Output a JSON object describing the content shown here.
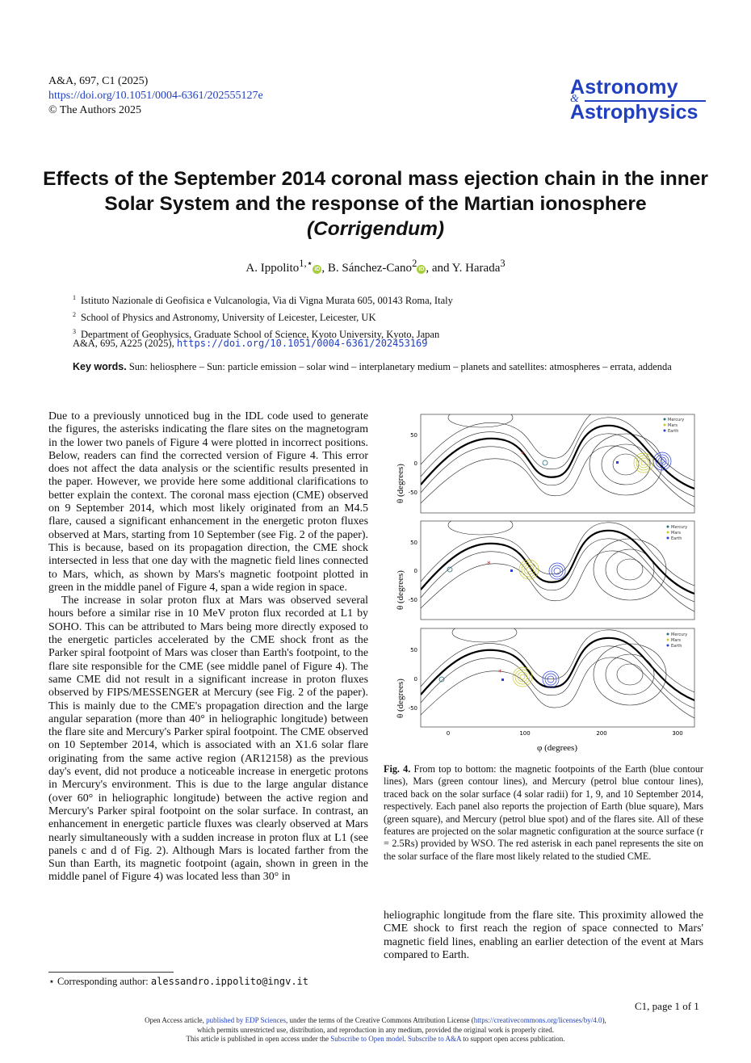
{
  "header": {
    "citation": "A&A, 697, C1  (2025)",
    "doi": "https://doi.org/10.1051/0004-6361/202555127e",
    "copyright": "© The Authors 2025"
  },
  "journal_logo": {
    "line1": "Astronomy",
    "amp": "&",
    "line2": "Astrophysics"
  },
  "title": {
    "main": "Effects of the September 2014 coronal mass ejection chain in the inner Solar System and the response of the Martian ionosphere",
    "sub": "(Corrigendum)"
  },
  "authors": [
    {
      "name": "A. Ippolito",
      "sup": "1,⋆"
    },
    {
      "name": "B. Sánchez-Cano",
      "sup": "2"
    },
    {
      "name": "Y. Harada",
      "sup": "3"
    }
  ],
  "authors_sep": ", ",
  "authors_and": ", and ",
  "affiliations": [
    {
      "num": "1",
      "text": "Istituto Nazionale di Geofisica e Vulcanologia, Via di Vigna Murata 605, 00143 Roma, Italy"
    },
    {
      "num": "2",
      "text": "School of Physics and Astronomy, University of Leicester, Leicester, UK"
    },
    {
      "num": "3",
      "text": "Department of Geophysics, Graduate School of Science, Kyoto University, Kyoto, Japan"
    }
  ],
  "original_ref": {
    "text": "A&A, 695, A225 (2025), ",
    "doi": "https://doi.org/10.1051/0004-6361/202453169"
  },
  "keywords": {
    "label": "Key words.",
    "text": "Sun: heliosphere – Sun: particle emission – solar wind – interplanetary medium – planets and satellites: atmospheres – errata, addenda"
  },
  "body_left": {
    "p1": "Due to a previously unnoticed bug in the IDL code used to generate the figures, the asterisks indicating the flare sites on the magnetogram in the lower two panels of Figure 4 were plotted in incorrect positions. Below, readers can find the corrected version of Figure 4. This error does not affect the data analysis or the scientific results presented in the paper. However, we provide here some additional clarifications to better explain the context. The coronal mass ejection (CME) observed on 9 September 2014, which most likely originated from an M4.5 flare, caused a significant enhancement in the energetic proton fluxes observed at Mars, starting from 10 September (see Fig. 2 of the paper). This is because, based on its propagation direction, the CME shock intersected in less that one day with the magnetic field lines connected to Mars, which, as shown by Mars's magnetic footpoint plotted in green in the middle panel of Figure 4, span a wide region in space.",
    "p2": "The increase in solar proton flux at Mars was observed several hours before a similar rise in 10 MeV proton flux recorded at L1 by SOHO. This can be attributed to Mars being more directly exposed to the energetic particles accelerated by the CME shock front as the Parker spiral footpoint of Mars was closer than Earth's footpoint, to the flare site responsible for the CME (see middle panel of Figure 4). The same CME did not result in a significant increase in proton fluxes observed by FIPS/MESSENGER at Mercury (see Fig. 2 of the paper). This is mainly due to the CME's propagation direction and the large angular separation (more than 40° in heliographic longitude) between the flare site and Mercury's Parker spiral footpoint. The CME observed on 10 September 2014, which is associated with an X1.6 solar flare originating from the same active region (AR12158) as the previous day's event, did not produce a noticeable increase in energetic protons in Mercury's environment. This is due to the large angular distance (over 60° in heliographic longitude) between the active region and Mercury's Parker spiral footpoint on the solar surface. In contrast, an enhancement in energetic particle fluxes was clearly observed at Mars nearly simultaneously with a sudden increase in proton flux at L1 (see panels c and d of Fig. 2). Although Mars is located farther from the Sun than Earth, its magnetic footpoint (again, shown in green in the middle panel of Figure 4) was located less than 30° in"
  },
  "body_right": "heliographic longitude from the flare site. This proximity allowed the CME shock to first reach the region of space connected to Mars' magnetic field lines, enabling an earlier detection of the event at Mars compared to Earth.",
  "figure": {
    "ylabel": "θ (degrees)",
    "xlabel": "φ (degrees)",
    "yticks": [
      "50",
      "0",
      "-50"
    ],
    "xticks": [
      "0",
      "100",
      "200",
      "300"
    ],
    "legend": [
      "Mercury",
      "Mars",
      "Earth"
    ],
    "colors": {
      "mercury": "#2a6f7a",
      "mars": "#c8c832",
      "earth": "#2a3fd6",
      "flare": "#d42020",
      "neutral_line": "#000000"
    }
  },
  "caption": {
    "label": "Fig. 4.",
    "text": " From top to bottom: the magnetic footpoints of the Earth (blue contour lines), Mars (green contour lines), and Mercury (petrol blue contour lines), traced back on the solar surface (4 solar radii) for 1, 9, and 10 September 2014, respectively. Each panel also reports the projection of Earth (blue square), Mars (green square), and Mercury (petrol blue spot) and of the flares site. All of these features are projected on the solar magnetic configuration at the source surface (r = 2.5Rs) provided by WSO. The red asterisk in each panel represents the site on the solar surface of the flare most likely related to the studied CME."
  },
  "footnote": {
    "marker": "⋆",
    "text": " Corresponding author: ",
    "email": "alessandro.ippolito@ingv.it"
  },
  "page_number": "C1, page 1 of 1",
  "footer": {
    "line1_a": "Open Access article, ",
    "line1_link1": "published by EDP Sciences",
    "line1_b": ", under the terms of the Creative Commons Attribution License (",
    "line1_link2": "https://creativecommons.org/licenses/by/4.0",
    "line1_c": "),",
    "line2": "which permits unrestricted use, distribution, and reproduction in any medium, provided the original work is properly cited.",
    "line3_a": "This article is published in open access under the ",
    "line3_link1": "Subscribe to Open model",
    "line3_b": ". ",
    "line3_link2": "Subscribe to A&A",
    "line3_c": " to support open access publication."
  }
}
